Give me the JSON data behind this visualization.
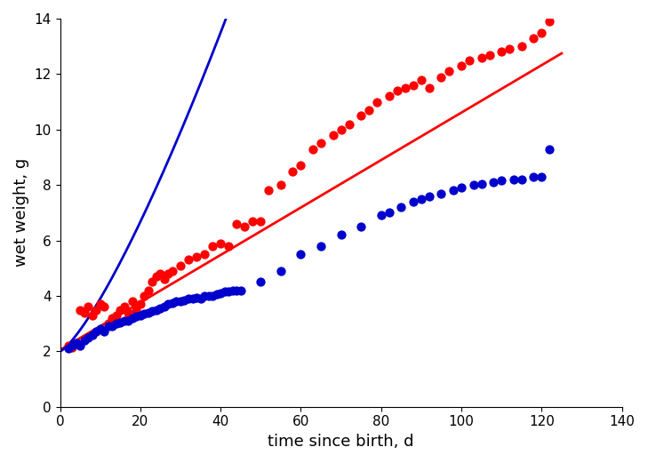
{
  "xlabel": "time since birth, d",
  "ylabel": "wet weight, g",
  "xlim": [
    0,
    140
  ],
  "ylim": [
    0,
    14
  ],
  "xticks": [
    0,
    20,
    40,
    60,
    80,
    100,
    120,
    140
  ],
  "yticks": [
    0,
    2,
    4,
    6,
    8,
    10,
    12,
    14
  ],
  "red_scatter_x": [
    2,
    3,
    4,
    5,
    6,
    7,
    8,
    9,
    10,
    11,
    12,
    13,
    14,
    15,
    16,
    17,
    18,
    19,
    20,
    21,
    22,
    23,
    24,
    25,
    26,
    27,
    28,
    30,
    32,
    34,
    36,
    38,
    40,
    42,
    44,
    46,
    48,
    50,
    52,
    55,
    58,
    60,
    63,
    65,
    68,
    70,
    72,
    75,
    77,
    79,
    82,
    84,
    86,
    88,
    90,
    92,
    95,
    97,
    100,
    102,
    105,
    107,
    110,
    112,
    115,
    118,
    120,
    122
  ],
  "red_scatter_y": [
    2.2,
    2.15,
    2.3,
    3.5,
    3.4,
    3.6,
    3.3,
    3.5,
    3.7,
    3.6,
    3.0,
    3.2,
    3.3,
    3.5,
    3.6,
    3.4,
    3.8,
    3.5,
    3.7,
    4.0,
    4.2,
    4.5,
    4.7,
    4.8,
    4.6,
    4.8,
    4.9,
    5.1,
    5.3,
    5.4,
    5.5,
    5.8,
    5.9,
    5.8,
    6.6,
    6.5,
    6.7,
    6.7,
    7.8,
    8.0,
    8.5,
    8.7,
    9.3,
    9.5,
    9.8,
    10.0,
    10.2,
    10.5,
    10.7,
    11.0,
    11.2,
    11.4,
    11.5,
    11.6,
    11.8,
    11.5,
    11.9,
    12.1,
    12.3,
    12.5,
    12.6,
    12.7,
    12.8,
    12.9,
    13.0,
    13.3,
    13.5,
    13.9
  ],
  "blue_scatter_x": [
    2,
    3,
    4,
    5,
    6,
    7,
    8,
    9,
    10,
    11,
    12,
    13,
    14,
    15,
    16,
    17,
    18,
    19,
    20,
    21,
    22,
    23,
    24,
    25,
    26,
    27,
    28,
    29,
    30,
    31,
    32,
    33,
    34,
    35,
    36,
    37,
    38,
    39,
    40,
    41,
    42,
    43,
    44,
    45,
    50,
    55,
    60,
    65,
    70,
    75,
    80,
    82,
    85,
    88,
    90,
    92,
    95,
    98,
    100,
    103,
    105,
    108,
    110,
    113,
    115,
    118,
    120,
    122
  ],
  "blue_scatter_y": [
    2.1,
    2.2,
    2.3,
    2.2,
    2.4,
    2.5,
    2.6,
    2.7,
    2.8,
    2.7,
    2.9,
    2.9,
    3.0,
    3.05,
    3.1,
    3.1,
    3.2,
    3.25,
    3.3,
    3.35,
    3.4,
    3.45,
    3.5,
    3.55,
    3.6,
    3.7,
    3.75,
    3.8,
    3.8,
    3.85,
    3.9,
    3.9,
    3.95,
    3.9,
    4.0,
    4.0,
    4.0,
    4.05,
    4.1,
    4.15,
    4.15,
    4.2,
    4.2,
    4.2,
    4.5,
    4.9,
    5.5,
    5.8,
    6.2,
    6.5,
    6.9,
    7.0,
    7.2,
    7.4,
    7.5,
    7.6,
    7.7,
    7.8,
    7.9,
    8.0,
    8.05,
    8.1,
    8.15,
    8.2,
    8.2,
    8.3,
    8.3,
    9.3
  ],
  "red_line_x0": 0,
  "red_line_x1": 125,
  "red_line_y0": 2.05,
  "red_line_y1": 12.75,
  "blue_line_a": 2.0,
  "blue_line_b": 0.095,
  "blue_line_c": 1.3,
  "red_color": "#FF0000",
  "blue_color": "#0000CC",
  "marker_size": 55,
  "line_width": 2.0,
  "xlabel_fontsize": 13,
  "ylabel_fontsize": 13,
  "tick_fontsize": 11,
  "background_color": "#FFFFFF",
  "fig_width": 7.29,
  "fig_height": 5.21
}
